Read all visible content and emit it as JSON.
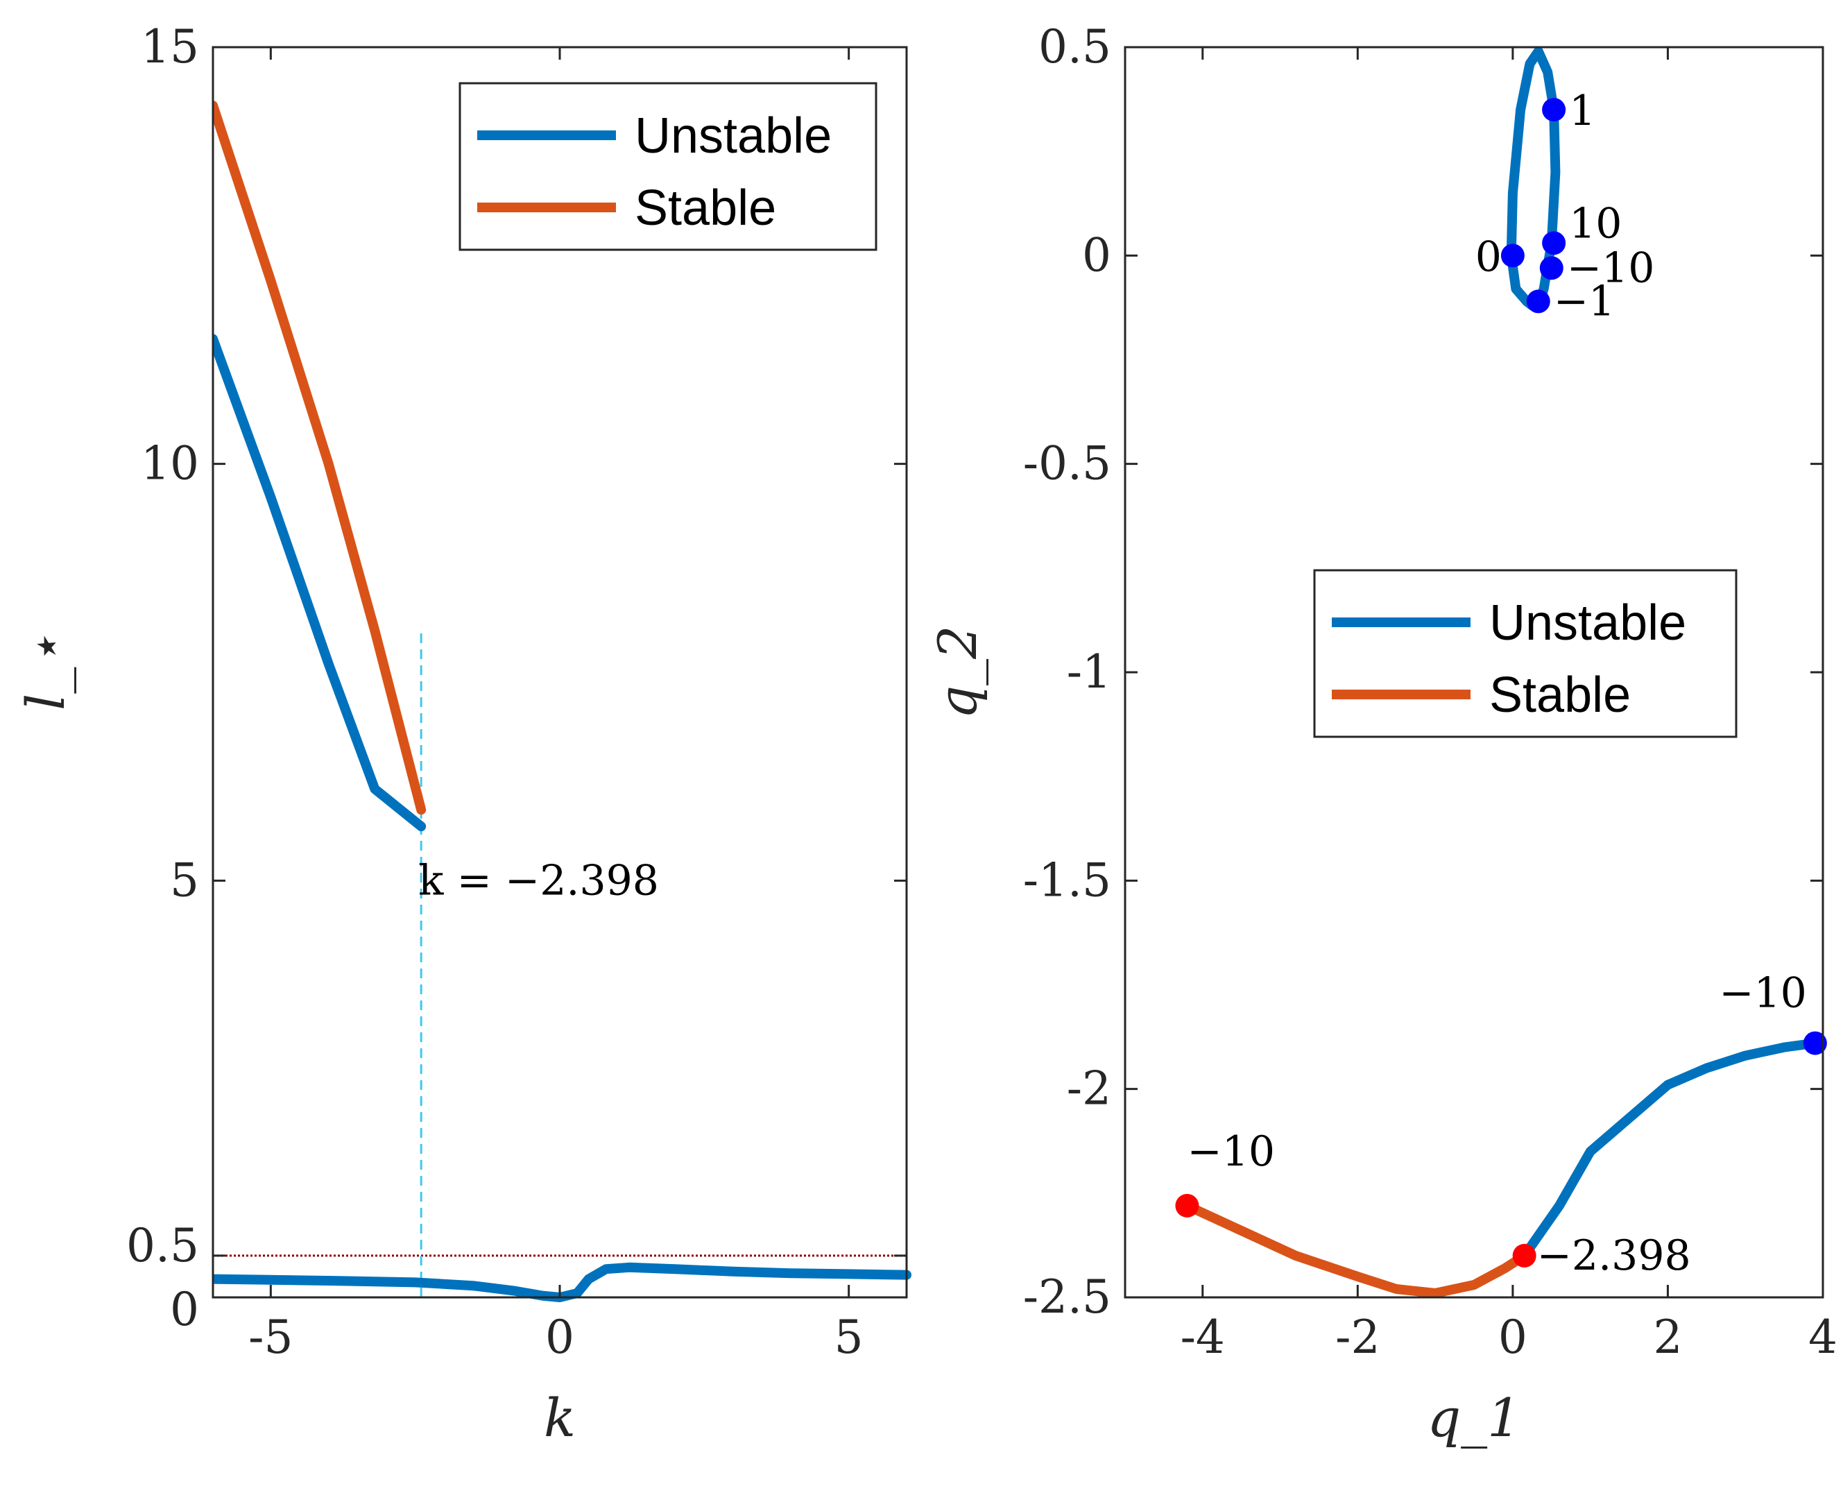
{
  "chart_data": [
    {
      "type": "line",
      "xlabel": "k",
      "ylabel": "l_⋆",
      "xlim": [
        -6,
        6
      ],
      "ylim": [
        0,
        15
      ],
      "xticks": [
        -5,
        0,
        5
      ],
      "xtick_labels": [
        "-5",
        "0",
        "5"
      ],
      "yticks": [
        0,
        0.5,
        5,
        10,
        15
      ],
      "ytick_labels": [
        "0",
        "0.5",
        "5",
        "10",
        "15"
      ],
      "legend": {
        "position": "top-right",
        "entries": [
          {
            "name": "Unstable",
            "color": "#0072BD"
          },
          {
            "name": "Stable",
            "color": "#D95319"
          }
        ]
      },
      "series": [
        {
          "name": "Unstable",
          "color": "#0072BD",
          "x": [
            -6,
            -5,
            -4,
            -3.2,
            -2.398
          ],
          "y": [
            11.5,
            9.6,
            7.6,
            6.1,
            5.65
          ]
        },
        {
          "name": "Stable",
          "color": "#D95319",
          "x": [
            -6,
            -5,
            -4,
            -3.2,
            -2.398
          ],
          "y": [
            14.3,
            12.2,
            10.0,
            8.0,
            5.85
          ]
        },
        {
          "name": "Unstable",
          "color": "#0072BD",
          "x": [
            -6,
            -4,
            -2.5,
            -1.5,
            -0.8,
            -0.3,
            0,
            0.3,
            0.5,
            0.8,
            1.2,
            2,
            3,
            4,
            5,
            6
          ],
          "y": [
            0.22,
            0.2,
            0.18,
            0.14,
            0.08,
            0.02,
            0.0,
            0.05,
            0.22,
            0.34,
            0.36,
            0.34,
            0.31,
            0.29,
            0.28,
            0.27
          ]
        }
      ],
      "reference_lines": [
        {
          "orientation": "horizontal",
          "value": 0.5,
          "color": "#8B0000",
          "style": "dotted"
        },
        {
          "orientation": "vertical",
          "value": -2.398,
          "y_range": [
            0,
            8
          ],
          "color": "#3FC7F0",
          "style": "dashed"
        }
      ],
      "annotations": [
        {
          "text": "k = −2.398",
          "x": -2.398,
          "y": 5
        }
      ]
    },
    {
      "type": "line",
      "xlabel": "q_1",
      "ylabel": "q_2",
      "xlim": [
        -5,
        4
      ],
      "ylim": [
        -2.5,
        0.5
      ],
      "xticks": [
        -4,
        -2,
        0,
        2,
        4
      ],
      "xtick_labels": [
        "-4",
        "-2",
        "0",
        "2",
        "4"
      ],
      "yticks": [
        -2.5,
        -2,
        -1.5,
        -1,
        -0.5,
        0,
        0.5
      ],
      "ytick_labels": [
        "-2.5",
        "-2",
        "-1.5",
        "-1",
        "-0.5",
        "0",
        "0.5"
      ],
      "legend": {
        "position": "center-right",
        "entries": [
          {
            "name": "Unstable",
            "color": "#0072BD"
          },
          {
            "name": "Stable",
            "color": "#D95319"
          }
        ]
      },
      "series": [
        {
          "name": "Unstable (closed curve)",
          "color": "#0072BD",
          "x": [
            0.33,
            0.4,
            0.5,
            0.55,
            0.53,
            0.45,
            0.33,
            0.22,
            0.1,
            0.0,
            -0.02,
            0.04,
            0.18,
            0.25,
            0.33
          ],
          "y": [
            -0.12,
            -0.08,
            0.03,
            0.2,
            0.35,
            0.44,
            0.49,
            0.46,
            0.35,
            0.15,
            0.0,
            -0.08,
            -0.11,
            -0.12,
            -0.12
          ]
        },
        {
          "name": "Unstable",
          "color": "#0072BD",
          "x": [
            0.15,
            0.6,
            1.0,
            1.5,
            2.0,
            2.5,
            3.0,
            3.5,
            3.9
          ],
          "y": [
            -2.4,
            -2.28,
            -2.15,
            -2.07,
            -1.99,
            -1.95,
            -1.92,
            -1.9,
            -1.89
          ]
        },
        {
          "name": "Stable",
          "color": "#D95319",
          "x": [
            -4.2,
            -3.5,
            -2.8,
            -2.0,
            -1.5,
            -1.0,
            -0.5,
            -0.1,
            0.15
          ],
          "y": [
            -2.28,
            -2.34,
            -2.4,
            -2.45,
            -2.48,
            -2.49,
            -2.47,
            -2.43,
            -2.4
          ]
        }
      ],
      "markers": [
        {
          "x": 0.53,
          "y": 0.35,
          "color": "#0000FF",
          "label": "1"
        },
        {
          "x": 0.0,
          "y": 0.0,
          "color": "#0000FF",
          "label": "0"
        },
        {
          "x": 0.53,
          "y": 0.03,
          "color": "#0000FF",
          "label": "10"
        },
        {
          "x": 0.5,
          "y": -0.03,
          "color": "#0000FF",
          "label": "−10"
        },
        {
          "x": 0.33,
          "y": -0.11,
          "color": "#0000FF",
          "label": "−1"
        },
        {
          "x": 3.9,
          "y": -1.89,
          "color": "#0000FF",
          "label": "−10"
        },
        {
          "x": 0.15,
          "y": -2.4,
          "color": "#FF0000",
          "label": "−2.398"
        },
        {
          "x": -4.2,
          "y": -2.28,
          "color": "#FF0000",
          "label": "−10"
        }
      ]
    }
  ]
}
